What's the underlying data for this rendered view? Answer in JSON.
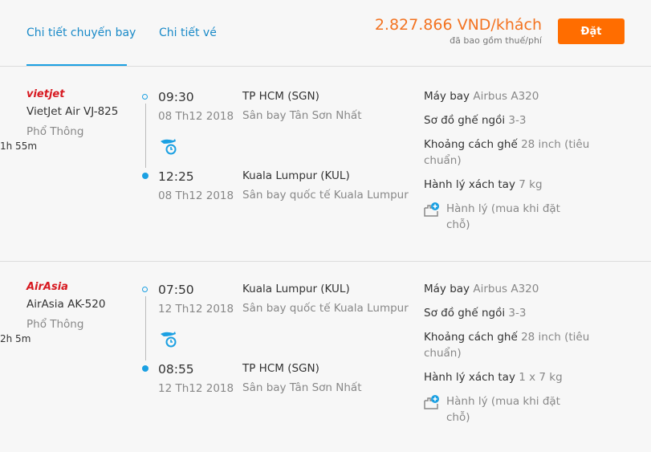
{
  "tabs": [
    {
      "label": "Chi tiết chuyến bay",
      "active": true
    },
    {
      "label": "Chi tiết vé",
      "active": false
    }
  ],
  "price": {
    "amount": "2.827.866 VND/khách",
    "note": "đã bao gồm thuế/phí",
    "book_label": "Đặt"
  },
  "colors": {
    "accent": "#1ba0e2",
    "price": "#f37321",
    "button": "#ff6d00"
  },
  "flights": [
    {
      "logo": "vietjet",
      "name": "VietJet Air VJ-825",
      "class": "Phổ Thông",
      "dep_time": "09:30",
      "dep_date": "08 Th12 2018",
      "dep_place": "TP HCM (SGN)",
      "dep_airport": "Sân bay Tân Sơn Nhất",
      "duration": "1h 55m",
      "arr_time": "12:25",
      "arr_date": "08 Th12 2018",
      "arr_place": "Kuala Lumpur (KUL)",
      "arr_airport": "Sân bay quốc tế Kuala Lumpur",
      "aircraft_label": "Máy bay",
      "aircraft": "Airbus A320",
      "seatmap_label": "Sơ đồ ghế ngồi",
      "seatmap": "3-3",
      "pitch_label": "Khoảng cách ghế",
      "pitch": "28 inch (tiêu chuẩn)",
      "cabin_label": "Hành lý xách tay",
      "cabin": "7 kg",
      "baggage": "Hành lý (mua khi đặt chỗ)"
    },
    {
      "logo": "AirAsia",
      "name": "AirAsia AK-520",
      "class": "Phổ Thông",
      "dep_time": "07:50",
      "dep_date": "12 Th12 2018",
      "dep_place": "Kuala Lumpur (KUL)",
      "dep_airport": "Sân bay quốc tế Kuala Lumpur",
      "duration": "2h 5m",
      "arr_time": "08:55",
      "arr_date": "12 Th12 2018",
      "arr_place": "TP HCM (SGN)",
      "arr_airport": "Sân bay Tân Sơn Nhất",
      "aircraft_label": "Máy bay",
      "aircraft": "Airbus A320",
      "seatmap_label": "Sơ đồ ghế ngồi",
      "seatmap": "3-3",
      "pitch_label": "Khoảng cách ghế",
      "pitch": "28 inch (tiêu chuẩn)",
      "cabin_label": "Hành lý xách tay",
      "cabin": "1 x 7 kg",
      "baggage": "Hành lý (mua khi đặt chỗ)"
    }
  ]
}
